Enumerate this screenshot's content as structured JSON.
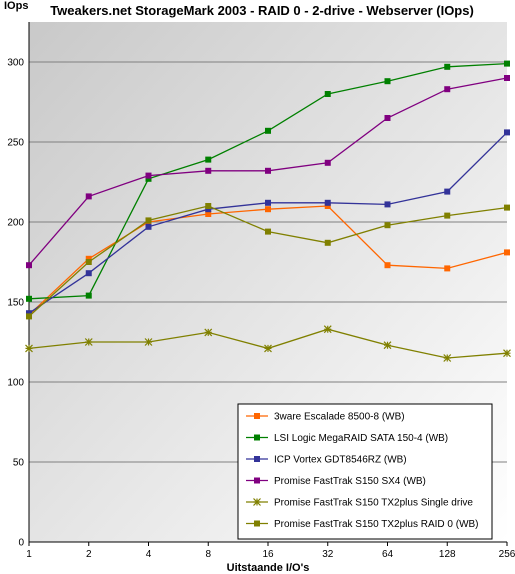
{
  "chart_data": {
    "type": "line",
    "title": "Tweakers.net StorageMark 2003 -  RAID 0 - 2-drive - Webserver (IOps)",
    "ylabel": "IOps",
    "xlabel": "Uitstaande I/O's",
    "categories": [
      "1",
      "2",
      "4",
      "8",
      "16",
      "32",
      "64",
      "128",
      "256"
    ],
    "ylim": [
      0,
      325
    ],
    "yticks": [
      0,
      50,
      100,
      150,
      200,
      250,
      300
    ],
    "grid": true,
    "legend_position": "bottom-right",
    "series": [
      {
        "name": "3ware Escalade 8500-8 (WB)",
        "color": "#ff6600",
        "marker": "square",
        "values": [
          142,
          177,
          200,
          205,
          208,
          210,
          173,
          171,
          181
        ]
      },
      {
        "name": "LSI Logic MegaRAID SATA 150-4 (WB)",
        "color": "#008000",
        "marker": "square",
        "values": [
          152,
          154,
          227,
          239,
          257,
          280,
          288,
          297,
          299
        ]
      },
      {
        "name": "ICP Vortex GDT8546RZ (WB)",
        "color": "#333399",
        "marker": "square",
        "values": [
          143,
          168,
          197,
          208,
          212,
          212,
          211,
          219,
          256
        ]
      },
      {
        "name": "Promise FastTrak S150 SX4 (WB)",
        "color": "#800080",
        "marker": "square",
        "values": [
          173,
          216,
          229,
          232,
          232,
          237,
          265,
          283,
          290
        ]
      },
      {
        "name": "Promise FastTrak S150 TX2plus Single drive",
        "color": "#808000",
        "marker": "star",
        "values": [
          121,
          125,
          125,
          131,
          121,
          133,
          123,
          115,
          118
        ]
      },
      {
        "name": "Promise FastTrak S150 TX2plus RAID 0 (WB)",
        "color": "#808000",
        "marker": "square",
        "values": [
          141,
          175,
          201,
          210,
          194,
          187,
          198,
          204,
          209
        ]
      }
    ]
  }
}
